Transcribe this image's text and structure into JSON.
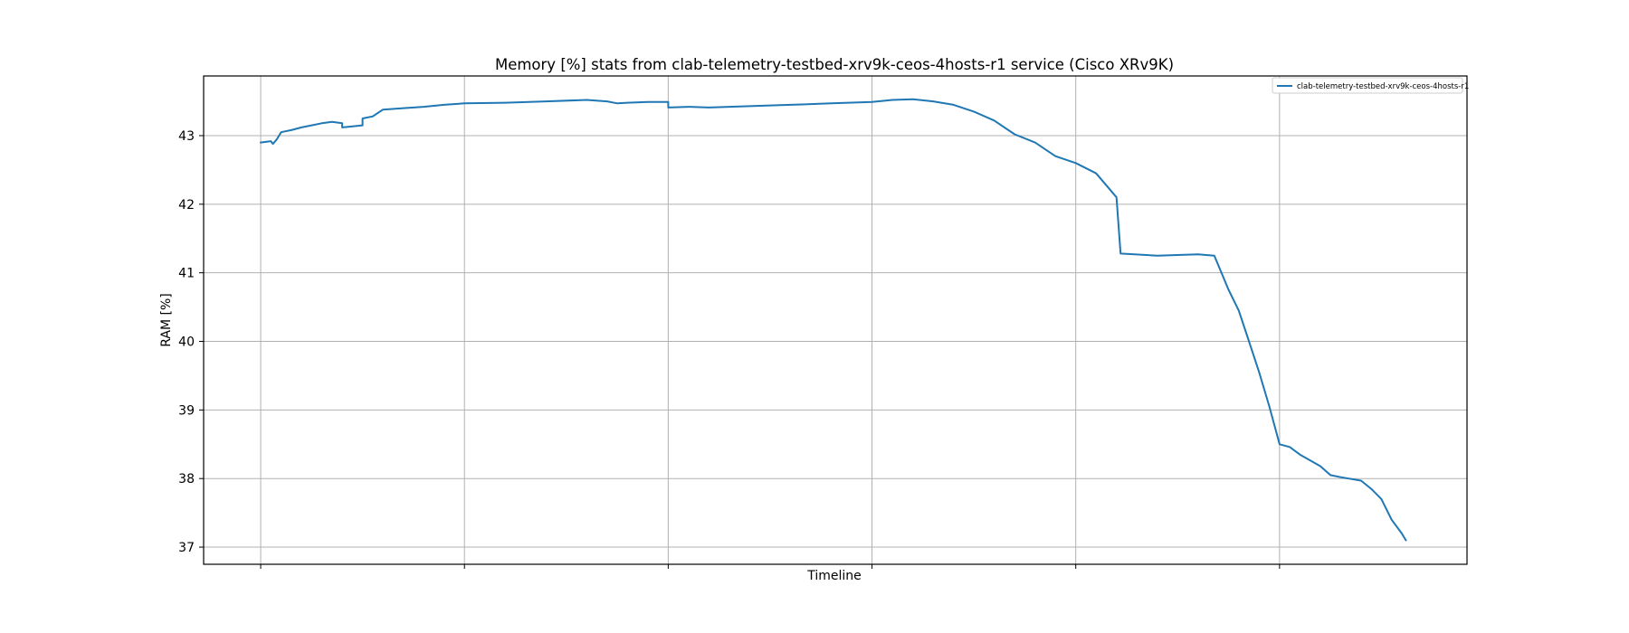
{
  "chart_data": {
    "type": "line",
    "title": "Memory [%] stats from clab-telemetry-testbed-xrv9k-ceos-4hosts-r1 service (Cisco XRv9K)",
    "xlabel": "Timeline",
    "ylabel": "RAM [%]",
    "ylim": [
      36.75,
      43.87
    ],
    "xlim": [
      -0.28,
      5.92
    ],
    "x_tick_count": 6,
    "y_ticks": [
      37,
      38,
      39,
      40,
      41,
      42,
      43
    ],
    "y_tick_labels": [
      "37",
      "38",
      "39",
      "40",
      "41",
      "42",
      "43"
    ],
    "grid": true,
    "legend_position": "top-right",
    "series": [
      {
        "name": "clab-telemetry-testbed-xrv9k-ceos-4hosts-r1",
        "color": "#1f77b4",
        "x": [
          0.0,
          0.05,
          0.06,
          0.08,
          0.1,
          0.15,
          0.2,
          0.25,
          0.3,
          0.35,
          0.4,
          0.4,
          0.5,
          0.5,
          0.55,
          0.6,
          0.7,
          0.8,
          0.9,
          1.0,
          1.2,
          1.4,
          1.6,
          1.7,
          1.75,
          1.8,
          1.9,
          2.0,
          2.0,
          2.1,
          2.2,
          2.4,
          2.6,
          2.8,
          3.0,
          3.1,
          3.2,
          3.3,
          3.4,
          3.5,
          3.6,
          3.7,
          3.8,
          3.9,
          4.0,
          4.1,
          4.2,
          4.22,
          4.4,
          4.6,
          4.68,
          4.75,
          4.8,
          4.85,
          4.9,
          4.95,
          5.0,
          5.05,
          5.1,
          5.2,
          5.25,
          5.3,
          5.4,
          5.45,
          5.5,
          5.55,
          5.6,
          5.62
        ],
        "y": [
          42.9,
          42.92,
          42.88,
          42.95,
          43.05,
          43.08,
          43.12,
          43.15,
          43.18,
          43.2,
          43.18,
          43.12,
          43.15,
          43.25,
          43.28,
          43.38,
          43.4,
          43.42,
          43.45,
          43.47,
          43.48,
          43.5,
          43.52,
          43.5,
          43.47,
          43.48,
          43.49,
          43.49,
          43.41,
          43.42,
          43.41,
          43.43,
          43.45,
          43.47,
          43.49,
          43.52,
          43.53,
          43.5,
          43.45,
          43.35,
          43.22,
          43.02,
          42.9,
          42.7,
          42.6,
          42.45,
          42.1,
          41.28,
          41.25,
          41.27,
          41.25,
          40.75,
          40.45,
          40.0,
          39.55,
          39.05,
          38.5,
          38.46,
          38.35,
          38.18,
          38.05,
          38.02,
          37.97,
          37.85,
          37.7,
          37.4,
          37.2,
          37.1
        ]
      }
    ]
  }
}
